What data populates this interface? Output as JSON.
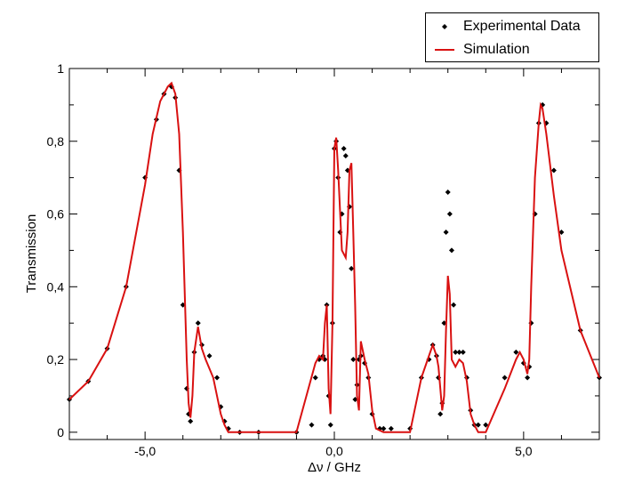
{
  "chart_data": {
    "type": "line",
    "title": "",
    "xlabel": "Δν / GHz",
    "ylabel": "Transmission",
    "xlim": [
      -7.0,
      7.0
    ],
    "ylim": [
      -0.02,
      1.0
    ],
    "x_ticks": [
      -5.0,
      0.0,
      5.0
    ],
    "x_tick_labels": [
      "-5,0",
      "0,0",
      "5,0"
    ],
    "y_ticks": [
      0,
      0.2,
      0.4,
      0.6,
      0.8,
      1.0
    ],
    "y_tick_labels": [
      "0",
      "0,2",
      "0,4",
      "0,6",
      "0,8",
      "1"
    ],
    "grid": false,
    "legend_position": "top-right",
    "series": [
      {
        "name": "Experimental Data",
        "style": "markers",
        "color": "#000000",
        "x": [
          -7.0,
          -6.5,
          -6.0,
          -5.5,
          -5.0,
          -4.7,
          -4.5,
          -4.3,
          -4.2,
          -4.1,
          -4.0,
          -3.9,
          -3.85,
          -3.8,
          -3.7,
          -3.6,
          -3.5,
          -3.3,
          -3.1,
          -3.0,
          -2.9,
          -2.8,
          -2.5,
          -2.0,
          -1.0,
          -0.6,
          -0.5,
          -0.4,
          -0.3,
          -0.25,
          -0.2,
          -0.15,
          -0.1,
          -0.05,
          0.0,
          0.05,
          0.1,
          0.15,
          0.2,
          0.25,
          0.3,
          0.35,
          0.4,
          0.45,
          0.5,
          0.55,
          0.6,
          0.65,
          0.7,
          0.8,
          0.9,
          1.0,
          1.2,
          1.3,
          1.5,
          2.0,
          2.3,
          2.5,
          2.6,
          2.7,
          2.75,
          2.8,
          2.85,
          2.9,
          2.95,
          3.0,
          3.05,
          3.1,
          3.15,
          3.2,
          3.3,
          3.4,
          3.5,
          3.6,
          3.7,
          3.8,
          4.0,
          4.5,
          4.8,
          5.0,
          5.1,
          5.15,
          5.2,
          5.3,
          5.4,
          5.5,
          5.6,
          5.8,
          6.0,
          6.5,
          7.0
        ],
        "y": [
          0.09,
          0.14,
          0.23,
          0.4,
          0.7,
          0.86,
          0.93,
          0.95,
          0.92,
          0.72,
          0.35,
          0.12,
          0.05,
          0.03,
          0.22,
          0.3,
          0.24,
          0.21,
          0.15,
          0.07,
          0.03,
          0.01,
          0.0,
          0.0,
          0.0,
          0.02,
          0.15,
          0.2,
          0.21,
          0.2,
          0.35,
          0.1,
          0.02,
          0.3,
          0.78,
          0.8,
          0.7,
          0.55,
          0.6,
          0.78,
          0.76,
          0.72,
          0.62,
          0.45,
          0.2,
          0.09,
          0.13,
          0.2,
          0.21,
          0.19,
          0.15,
          0.05,
          0.01,
          0.01,
          0.01,
          0.01,
          0.15,
          0.2,
          0.24,
          0.21,
          0.15,
          0.05,
          0.08,
          0.3,
          0.55,
          0.66,
          0.6,
          0.5,
          0.35,
          0.22,
          0.22,
          0.22,
          0.15,
          0.06,
          0.02,
          0.02,
          0.02,
          0.15,
          0.22,
          0.19,
          0.15,
          0.18,
          0.3,
          0.6,
          0.85,
          0.9,
          0.85,
          0.72,
          0.55,
          0.28,
          0.15
        ]
      },
      {
        "name": "Simulation",
        "style": "line",
        "color": "#d91111",
        "x": [
          -7.0,
          -6.5,
          -6.0,
          -5.5,
          -5.0,
          -4.8,
          -4.6,
          -4.4,
          -4.3,
          -4.2,
          -4.1,
          -4.0,
          -3.9,
          -3.85,
          -3.8,
          -3.75,
          -3.7,
          -3.6,
          -3.5,
          -3.4,
          -3.2,
          -3.0,
          -2.9,
          -2.8,
          -2.5,
          -2.0,
          -1.0,
          -0.5,
          -0.4,
          -0.3,
          -0.25,
          -0.2,
          -0.15,
          -0.1,
          -0.05,
          0.0,
          0.05,
          0.1,
          0.2,
          0.3,
          0.35,
          0.4,
          0.45,
          0.5,
          0.55,
          0.6,
          0.65,
          0.7,
          0.8,
          0.9,
          1.0,
          1.1,
          1.3,
          1.5,
          2.0,
          2.3,
          2.5,
          2.6,
          2.7,
          2.75,
          2.8,
          2.85,
          2.9,
          2.95,
          3.0,
          3.05,
          3.1,
          3.2,
          3.3,
          3.4,
          3.5,
          3.6,
          3.7,
          3.8,
          4.0,
          4.5,
          4.8,
          4.9,
          5.0,
          5.1,
          5.15,
          5.2,
          5.3,
          5.4,
          5.45,
          5.5,
          5.6,
          5.8,
          6.0,
          6.5,
          7.0
        ],
        "y": [
          0.09,
          0.14,
          0.23,
          0.4,
          0.68,
          0.82,
          0.91,
          0.95,
          0.96,
          0.93,
          0.82,
          0.55,
          0.2,
          0.08,
          0.04,
          0.1,
          0.22,
          0.29,
          0.23,
          0.2,
          0.15,
          0.05,
          0.02,
          0.0,
          0.0,
          0.0,
          0.0,
          0.19,
          0.21,
          0.2,
          0.3,
          0.35,
          0.12,
          0.05,
          0.3,
          0.78,
          0.81,
          0.72,
          0.5,
          0.48,
          0.55,
          0.72,
          0.74,
          0.55,
          0.35,
          0.1,
          0.06,
          0.25,
          0.2,
          0.16,
          0.06,
          0.01,
          0.0,
          0.0,
          0.0,
          0.15,
          0.21,
          0.24,
          0.21,
          0.18,
          0.12,
          0.06,
          0.1,
          0.28,
          0.43,
          0.38,
          0.2,
          0.18,
          0.2,
          0.19,
          0.14,
          0.05,
          0.02,
          0.0,
          0.0,
          0.12,
          0.2,
          0.22,
          0.2,
          0.16,
          0.2,
          0.4,
          0.7,
          0.85,
          0.9,
          0.89,
          0.82,
          0.65,
          0.5,
          0.28,
          0.15
        ]
      }
    ]
  },
  "legend": {
    "items": [
      {
        "label": "Experimental Data",
        "color": "#000000",
        "symbol": "diamond"
      },
      {
        "label": "Simulation",
        "color": "#d91111",
        "symbol": "line"
      }
    ]
  }
}
